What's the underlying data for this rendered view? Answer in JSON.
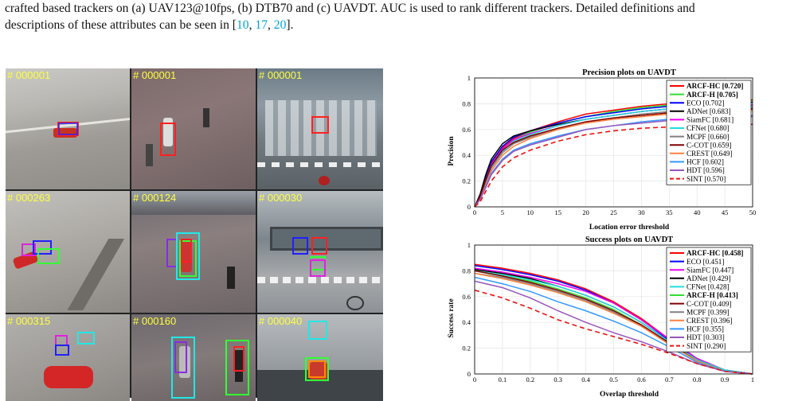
{
  "caption": {
    "line1": "crafted based trackers on (a) UAV123@10fps, (b) DTB70 and (c) UAVDT. AUC is used to rank different trackers. Detailed definitions and",
    "line2_pre": "descriptions of these attributes can be seen in [",
    "refs": [
      "10",
      "17",
      "20"
    ],
    "line2_post": "]."
  },
  "frames": [
    {
      "label": "# 000001"
    },
    {
      "label": "# 000001"
    },
    {
      "label": "# 000001"
    },
    {
      "label": "# 000263"
    },
    {
      "label": "# 000124"
    },
    {
      "label": "# 000030"
    },
    {
      "label": "# 000315"
    },
    {
      "label": "# 000160"
    },
    {
      "label": "# 000040"
    }
  ],
  "colors": {
    "ARCF-HC": "#ff0000",
    "ARCF-H": "#33dd33",
    "ECO": "#0000ff",
    "ADNet": "#000000",
    "SiamFC": "#ee00ee",
    "CFNet": "#22dddd",
    "MCPF": "#808080",
    "C-COT": "#800000",
    "CREST": "#ff8040",
    "HCF": "#3399ff",
    "HDT": "#9955bb",
    "SINT": "#ee1111"
  },
  "chart_data": [
    {
      "type": "line",
      "title": "Precision plots on UAVDT",
      "xlabel": "Location error threshold",
      "ylabel": "Precision",
      "xlim": [
        0,
        50
      ],
      "ylim": [
        0,
        1
      ],
      "xticks": [
        "0",
        "5",
        "10",
        "15",
        "20",
        "25",
        "30",
        "35",
        "40",
        "45",
        "50"
      ],
      "yticks": [
        "0",
        "0.2",
        "0.4",
        "0.6",
        "0.8",
        "1"
      ],
      "grid": true,
      "legend": "top-right",
      "x": [
        0,
        1,
        2,
        3,
        5,
        7,
        10,
        15,
        20,
        25,
        30,
        35,
        40,
        45,
        50
      ],
      "series": [
        {
          "name": "ARCF-HC [0.720]",
          "key": "ARCF-HC",
          "bold": true,
          "dashed": false,
          "values": [
            0,
            0.08,
            0.22,
            0.34,
            0.46,
            0.53,
            0.59,
            0.66,
            0.72,
            0.75,
            0.78,
            0.8,
            0.81,
            0.82,
            0.83
          ]
        },
        {
          "name": "ARCF-H [0.705]",
          "key": "ARCF-H",
          "bold": true,
          "dashed": false,
          "values": [
            0,
            0.08,
            0.21,
            0.33,
            0.45,
            0.52,
            0.58,
            0.65,
            0.7,
            0.74,
            0.77,
            0.79,
            0.8,
            0.81,
            0.82
          ]
        },
        {
          "name": "ECO [0.702]",
          "key": "ECO",
          "bold": false,
          "dashed": false,
          "values": [
            0,
            0.09,
            0.23,
            0.35,
            0.47,
            0.54,
            0.59,
            0.65,
            0.7,
            0.73,
            0.76,
            0.78,
            0.79,
            0.8,
            0.81
          ]
        },
        {
          "name": "ADNet [0.683]",
          "key": "ADNet",
          "bold": false,
          "dashed": false,
          "values": [
            0,
            0.1,
            0.25,
            0.37,
            0.49,
            0.55,
            0.59,
            0.64,
            0.68,
            0.71,
            0.74,
            0.76,
            0.77,
            0.78,
            0.79
          ]
        },
        {
          "name": "SiamFC [0.681]",
          "key": "SiamFC",
          "bold": false,
          "dashed": false,
          "values": [
            0,
            0.08,
            0.21,
            0.33,
            0.45,
            0.52,
            0.57,
            0.63,
            0.68,
            0.71,
            0.74,
            0.76,
            0.77,
            0.78,
            0.79
          ]
        },
        {
          "name": "CFNet [0.680]",
          "key": "CFNet",
          "bold": false,
          "dashed": false,
          "values": [
            0,
            0.07,
            0.2,
            0.31,
            0.43,
            0.51,
            0.56,
            0.63,
            0.68,
            0.71,
            0.74,
            0.76,
            0.77,
            0.78,
            0.78
          ]
        },
        {
          "name": "MCPF [0.660]",
          "key": "MCPF",
          "bold": false,
          "dashed": false,
          "values": [
            0,
            0.07,
            0.19,
            0.3,
            0.42,
            0.49,
            0.54,
            0.61,
            0.66,
            0.69,
            0.72,
            0.74,
            0.75,
            0.76,
            0.77
          ]
        },
        {
          "name": "C-COT [0.659]",
          "key": "C-COT",
          "bold": false,
          "dashed": false,
          "values": [
            0,
            0.08,
            0.21,
            0.32,
            0.44,
            0.5,
            0.55,
            0.61,
            0.66,
            0.69,
            0.71,
            0.73,
            0.74,
            0.75,
            0.76
          ]
        },
        {
          "name": "CREST [0.649]",
          "key": "CREST",
          "bold": false,
          "dashed": false,
          "values": [
            0,
            0.06,
            0.17,
            0.28,
            0.4,
            0.47,
            0.53,
            0.6,
            0.65,
            0.68,
            0.7,
            0.72,
            0.73,
            0.74,
            0.75
          ]
        },
        {
          "name": "HCF [0.602]",
          "key": "HCF",
          "bold": false,
          "dashed": false,
          "values": [
            0,
            0.06,
            0.16,
            0.26,
            0.37,
            0.44,
            0.49,
            0.55,
            0.6,
            0.63,
            0.66,
            0.68,
            0.69,
            0.7,
            0.71
          ]
        },
        {
          "name": "HDT [0.596]",
          "key": "HDT",
          "bold": false,
          "dashed": false,
          "values": [
            0,
            0.06,
            0.15,
            0.25,
            0.36,
            0.43,
            0.48,
            0.54,
            0.6,
            0.63,
            0.65,
            0.67,
            0.68,
            0.69,
            0.7
          ]
        },
        {
          "name": "SINT [0.570]",
          "key": "SINT",
          "bold": false,
          "dashed": true,
          "values": [
            0,
            0.04,
            0.12,
            0.2,
            0.31,
            0.38,
            0.44,
            0.51,
            0.56,
            0.59,
            0.61,
            0.62,
            0.63,
            0.64,
            0.64
          ]
        }
      ]
    },
    {
      "type": "line",
      "title": "Success plots on UAVDT",
      "xlabel": "Overlap threshold",
      "ylabel": "Success rate",
      "xlim": [
        0,
        1
      ],
      "ylim": [
        0,
        1
      ],
      "xticks": [
        "0",
        "0.1",
        "0.2",
        "0.3",
        "0.4",
        "0.5",
        "0.6",
        "0.7",
        "0.8",
        "0.9",
        "1"
      ],
      "yticks": [
        "0",
        "0.2",
        "0.4",
        "0.6",
        "0.8",
        "1"
      ],
      "grid": true,
      "legend": "top-right",
      "x": [
        0,
        0.1,
        0.2,
        0.3,
        0.4,
        0.5,
        0.6,
        0.7,
        0.8,
        0.9,
        1.0
      ],
      "series": [
        {
          "name": "ARCF-HC [0.458]",
          "key": "ARCF-HC",
          "bold": true,
          "dashed": false,
          "values": [
            0.85,
            0.82,
            0.78,
            0.73,
            0.66,
            0.56,
            0.43,
            0.27,
            0.12,
            0.03,
            0
          ]
        },
        {
          "name": "ECO [0.451]",
          "key": "ECO",
          "bold": false,
          "dashed": false,
          "values": [
            0.84,
            0.81,
            0.77,
            0.72,
            0.65,
            0.55,
            0.42,
            0.26,
            0.11,
            0.03,
            0
          ]
        },
        {
          "name": "SiamFC [0.447]",
          "key": "SiamFC",
          "bold": false,
          "dashed": false,
          "values": [
            0.82,
            0.79,
            0.75,
            0.7,
            0.64,
            0.55,
            0.42,
            0.27,
            0.12,
            0.03,
            0
          ]
        },
        {
          "name": "ADNet [0.429]",
          "key": "ADNet",
          "bold": false,
          "dashed": false,
          "values": [
            0.81,
            0.78,
            0.74,
            0.68,
            0.61,
            0.52,
            0.4,
            0.25,
            0.11,
            0.03,
            0
          ]
        },
        {
          "name": "CFNet [0.428]",
          "key": "CFNet",
          "bold": false,
          "dashed": false,
          "values": [
            0.8,
            0.77,
            0.73,
            0.68,
            0.61,
            0.52,
            0.4,
            0.25,
            0.11,
            0.03,
            0
          ]
        },
        {
          "name": "ARCF-H [0.413]",
          "key": "ARCF-H",
          "bold": true,
          "dashed": false,
          "values": [
            0.8,
            0.76,
            0.72,
            0.66,
            0.59,
            0.5,
            0.38,
            0.24,
            0.1,
            0.02,
            0
          ]
        },
        {
          "name": "C-COT [0.409]",
          "key": "C-COT",
          "bold": false,
          "dashed": false,
          "values": [
            0.8,
            0.76,
            0.71,
            0.65,
            0.58,
            0.49,
            0.38,
            0.24,
            0.1,
            0.02,
            0
          ]
        },
        {
          "name": "MCPF [0.399]",
          "key": "MCPF",
          "bold": false,
          "dashed": false,
          "values": [
            0.78,
            0.75,
            0.7,
            0.64,
            0.57,
            0.48,
            0.37,
            0.23,
            0.1,
            0.02,
            0
          ]
        },
        {
          "name": "CREST [0.396]",
          "key": "CREST",
          "bold": false,
          "dashed": false,
          "values": [
            0.78,
            0.74,
            0.69,
            0.63,
            0.56,
            0.47,
            0.37,
            0.23,
            0.1,
            0.02,
            0
          ]
        },
        {
          "name": "HCF [0.355]",
          "key": "HCF",
          "bold": false,
          "dashed": false,
          "values": [
            0.75,
            0.7,
            0.64,
            0.56,
            0.49,
            0.41,
            0.32,
            0.21,
            0.09,
            0.02,
            0
          ]
        },
        {
          "name": "HDT [0.303]",
          "key": "HDT",
          "bold": false,
          "dashed": false,
          "values": [
            0.72,
            0.67,
            0.59,
            0.49,
            0.4,
            0.32,
            0.25,
            0.17,
            0.08,
            0.02,
            0
          ]
        },
        {
          "name": "SINT [0.290]",
          "key": "SINT",
          "bold": false,
          "dashed": true,
          "values": [
            0.65,
            0.59,
            0.51,
            0.42,
            0.35,
            0.29,
            0.23,
            0.16,
            0.08,
            0.02,
            0
          ]
        }
      ]
    }
  ]
}
